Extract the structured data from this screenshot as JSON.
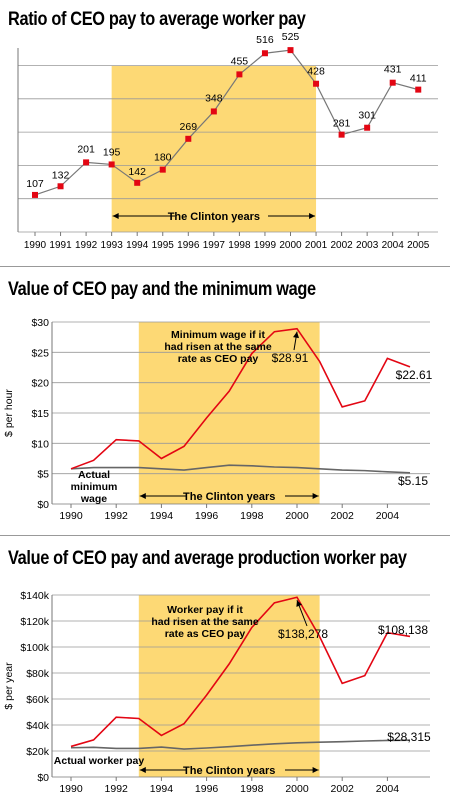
{
  "chart_data": [
    {
      "type": "line",
      "title": "Ratio of CEO pay to average worker pay",
      "x": [
        1990,
        1991,
        1992,
        1993,
        1994,
        1995,
        1996,
        1997,
        1998,
        1999,
        2000,
        2001,
        2002,
        2003,
        2004,
        2005
      ],
      "xtick_labels": [
        "1990",
        "1991",
        "1992",
        "1993",
        "1994",
        "1995",
        "1996",
        "1997",
        "1998",
        "1999",
        "2000",
        "2001",
        "2002",
        "2003",
        "2004",
        "2005"
      ],
      "series": [
        {
          "values": [
            107,
            132,
            201,
            195,
            142,
            180,
            269,
            348,
            455,
            516,
            525,
            428,
            281,
            301,
            431,
            411
          ],
          "color": "#777777",
          "marker_color": "#e30613"
        }
      ],
      "data_labels": [
        "107",
        "132",
        "201",
        "195",
        "142",
        "180",
        "269",
        "348",
        "455",
        "516",
        "525",
        "428",
        "281",
        "301",
        "431",
        "411"
      ],
      "ylim": [
        0,
        560
      ],
      "grid": true,
      "shaded_range": [
        1993,
        2001
      ],
      "annotation": "The Clinton years"
    },
    {
      "type": "line",
      "title": "Value of CEO pay and the minimum wage",
      "ylabel": "$ per hour",
      "xticks": [
        "1990",
        "1992",
        "1994",
        "1996",
        "1998",
        "2000",
        "2002",
        "2004"
      ],
      "yticks": [
        "$0",
        "$5",
        "$10",
        "$15",
        "$20",
        "$25",
        "$30"
      ],
      "ylim": [
        0,
        30
      ],
      "grid": true,
      "series": [
        {
          "name": "Minimum wage if it had risen at the same rate as CEO pay",
          "color": "#e30613",
          "x": [
            1990,
            1991,
            1992,
            1993,
            1994,
            1995,
            1996,
            1997,
            1998,
            1999,
            2000,
            2001,
            2002,
            2003,
            2004,
            2005
          ],
          "values": [
            5.8,
            7.2,
            10.6,
            10.4,
            7.5,
            9.5,
            14.2,
            18.6,
            24.8,
            28.4,
            28.9,
            23.5,
            16.0,
            17.0,
            24.0,
            22.61
          ]
        },
        {
          "name": "Actual minimum wage",
          "color": "#666666",
          "x": [
            1990,
            1991,
            1992,
            1993,
            1994,
            1995,
            1996,
            1997,
            1998,
            1999,
            2000,
            2001,
            2002,
            2003,
            2004,
            2005
          ],
          "values": [
            5.8,
            6.0,
            6.0,
            6.0,
            5.8,
            5.6,
            6.0,
            6.4,
            6.3,
            6.1,
            6.0,
            5.8,
            5.6,
            5.5,
            5.3,
            5.15
          ]
        }
      ],
      "legend_lines": {
        "red": [
          "Minimum wage if it",
          "had risen at the same",
          "rate as CEO pay"
        ],
        "gray": [
          "Actual",
          "minimum",
          "wage"
        ]
      },
      "value_labels": {
        "peak": "$28.91",
        "end_red": "$22.61",
        "end_gray": "$5.15"
      },
      "shaded_range": [
        1993,
        2001
      ],
      "annotation": "The Clinton years"
    },
    {
      "type": "line",
      "title": "Value of CEO pay and average production worker pay",
      "ylabel": "$ per year",
      "xticks": [
        "1990",
        "1992",
        "1994",
        "1996",
        "1998",
        "2000",
        "2002",
        "2004"
      ],
      "yticks": [
        "$0",
        "$20k",
        "$40k",
        "$60k",
        "$80k",
        "$100k",
        "$120k",
        "$140k"
      ],
      "ylim": [
        0,
        140000
      ],
      "grid": true,
      "series": [
        {
          "name": "Worker pay if it had risen at the same rate as CEO pay",
          "color": "#e30613",
          "x": [
            1990,
            1991,
            1992,
            1993,
            1994,
            1995,
            1996,
            1997,
            1998,
            1999,
            2000,
            2001,
            2002,
            2003,
            2004,
            2005
          ],
          "values": [
            23500,
            28500,
            46000,
            45000,
            32000,
            41000,
            63000,
            87000,
            115000,
            134000,
            138278,
            108000,
            72000,
            78000,
            111000,
            108138
          ]
        },
        {
          "name": "Actual worker pay",
          "color": "#666666",
          "x": [
            1990,
            1991,
            1992,
            1993,
            1994,
            1995,
            1996,
            1997,
            1998,
            1999,
            2000,
            2001,
            2002,
            2003,
            2004,
            2005
          ],
          "values": [
            22500,
            22800,
            22000,
            22000,
            23000,
            21500,
            22300,
            23300,
            24500,
            25500,
            26300,
            26800,
            27200,
            27700,
            28100,
            28315
          ]
        }
      ],
      "legend_lines": {
        "red": [
          "Worker pay if it",
          "had risen at the same",
          "rate as CEO pay"
        ],
        "gray": [
          "Actual worker pay"
        ]
      },
      "value_labels": {
        "peak": "$138,278",
        "end_red": "$108,138",
        "end_gray": "$28,315"
      },
      "shaded_range": [
        1993,
        2001
      ],
      "annotation": "The Clinton years"
    }
  ]
}
